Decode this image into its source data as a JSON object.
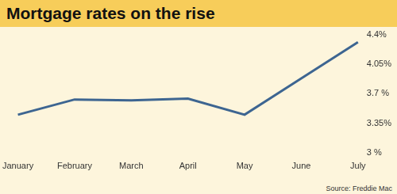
{
  "chart_data": {
    "type": "line",
    "title": "Mortgage rates on the rise",
    "source": "Source: Freddie Mac",
    "categories": [
      "January",
      "February",
      "March",
      "April",
      "May",
      "June",
      "July"
    ],
    "values": [
      3.45,
      3.63,
      3.62,
      3.64,
      3.45,
      3.88,
      4.31
    ],
    "color": "#3d6591",
    "ylim": [
      3,
      4.4
    ],
    "yticks": [
      {
        "value": 3,
        "label": "3 %"
      },
      {
        "value": 3.35,
        "label": "3.35%"
      },
      {
        "value": 3.7,
        "label": "3.7 %"
      },
      {
        "value": 4.05,
        "label": "4.05%"
      },
      {
        "value": 4.4,
        "label": "4.4%"
      }
    ],
    "grid": false
  }
}
